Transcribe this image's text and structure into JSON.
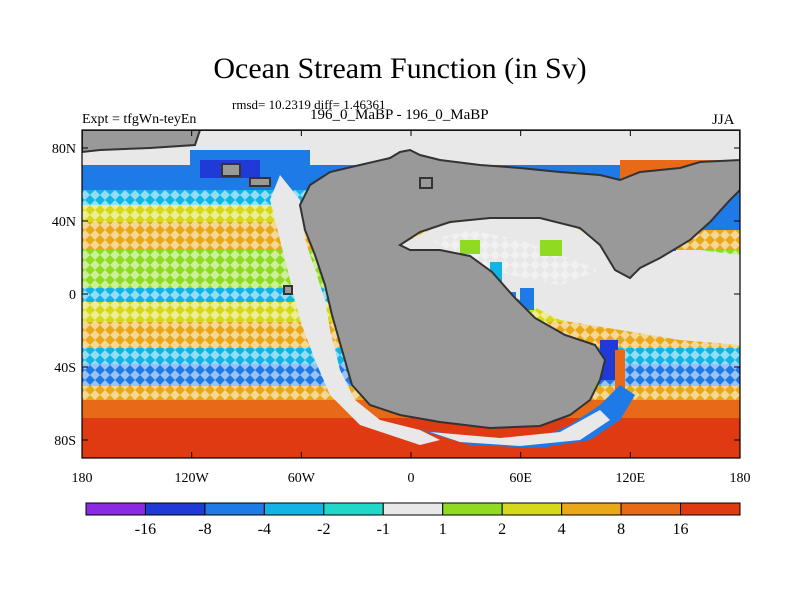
{
  "header": {
    "title": "Ocean Stream Function (in Sv)",
    "stats": "rmsd= 10.2319 diff= 1.46361",
    "experiment": "Expt = tfgWn-teyEn",
    "period": "196_0_MaBP - 196_0_MaBP",
    "season": "JJA"
  },
  "axes": {
    "x_ticks": [
      "180",
      "120W",
      "60W",
      "0",
      "60E",
      "120E",
      "180"
    ],
    "y_ticks": [
      "80N",
      "40N",
      "0",
      "40S",
      "80S"
    ]
  },
  "colorbar": {
    "colors": [
      "#8a2be2",
      "#1f3ad6",
      "#1e7ae6",
      "#12b4e6",
      "#1fd8c8",
      "#e8e8e8",
      "#8edb22",
      "#d6d81a",
      "#e8a818",
      "#e86a18",
      "#e03a12"
    ],
    "labels": [
      "-16",
      "-8",
      "-4",
      "-2",
      "-1",
      "1",
      "2",
      "4",
      "8",
      "16"
    ]
  },
  "map_colors": {
    "land": "#999999",
    "coast": "#333333"
  }
}
